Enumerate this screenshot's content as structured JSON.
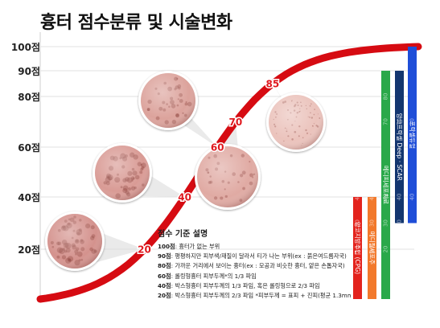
{
  "title": "흉터 점수분류 및 시술변화",
  "y_axis": {
    "labels": [
      {
        "value": 100,
        "text": "100점"
      },
      {
        "value": 90,
        "text": "90점"
      },
      {
        "value": 80,
        "text": "80점"
      },
      {
        "value": 60,
        "text": "60점"
      },
      {
        "value": 40,
        "text": "40점"
      },
      {
        "value": 20,
        "text": "20점"
      }
    ]
  },
  "curve_markers": [
    {
      "value": 20,
      "label": "20"
    },
    {
      "value": 40,
      "label": "40"
    },
    {
      "value": 60,
      "label": "60"
    },
    {
      "value": 70,
      "label": "70"
    },
    {
      "value": 85,
      "label": "85"
    }
  ],
  "colors": {
    "curve": "#d60b12",
    "marker_text": "#e0191f",
    "grid": "#e2e2e2",
    "bar_1": "#e3231d",
    "bar_2": "#f2792c",
    "bar_3": "#2aa84a",
    "bar_4": "#13366f",
    "bar_5": "#1f4ed8",
    "ghost_tick": "#ffffff"
  },
  "treatment_bars": [
    {
      "name": "양코지방주입 (CPG)",
      "from": 0,
      "to": 40,
      "ticks": [
        "40",
        "30",
        "20"
      ],
      "color_key": "bar_1"
    },
    {
      "name": "메디필세포주",
      "from": 0,
      "to": 40,
      "ticks": [
        "40",
        "30",
        "20"
      ],
      "color_key": "bar_2"
    },
    {
      "name": "메디피세포치료",
      "from": 0,
      "to": 90,
      "ticks": [
        "80",
        "70",
        "40",
        "30",
        "20"
      ],
      "color_key": "bar_3"
    },
    {
      "name": "양코프락셀 Deep · SCAR",
      "from": 30,
      "to": 90,
      "ticks": [
        "70",
        "40",
        "30"
      ],
      "color_key": "bar_4"
    },
    {
      "name": "프락셀듀얼",
      "from": 30,
      "to": 100,
      "ticks": [
        "70",
        "40"
      ],
      "color_key": "bar_5"
    }
  ],
  "legend": {
    "title": "점수 기준 설명",
    "rows": [
      {
        "score": "100점",
        "text": ": 흉터가 없는 부위"
      },
      {
        "score": "90점",
        "text": ": 평평하지만 피부색/재질이 달라서 티가 나는 부위(ex : 붉은여드름자국)"
      },
      {
        "score": "80점",
        "text": ": 가까운 거리에서 보이는 흉터(ex : 모공과 비슷한 흉터, 얕은 손톱자국)"
      },
      {
        "score": "60점",
        "text": ": 롤링형흉터 피부두께*의 1/3 파임"
      },
      {
        "score": "40점",
        "text": ": 박스형흉터 피부두께의 1/3 파임, 혹은 롤링형으로 2/3 파임"
      },
      {
        "score": "20점",
        "text": ": 박스형흉터 피부두께의 2/3 파임 *피부두께 = 표피 + 진피(평균 1.3mm 내외)"
      }
    ]
  },
  "skin_samples": [
    {
      "name": "skin-sample-20",
      "tone": "#d4928d"
    },
    {
      "name": "skin-sample-40",
      "tone": "#d99b95"
    },
    {
      "name": "skin-sample-60",
      "tone": "#dca39c"
    },
    {
      "name": "skin-sample-70",
      "tone": "#e0aaa3"
    },
    {
      "name": "skin-sample-85",
      "tone": "#ebc3bc"
    }
  ]
}
